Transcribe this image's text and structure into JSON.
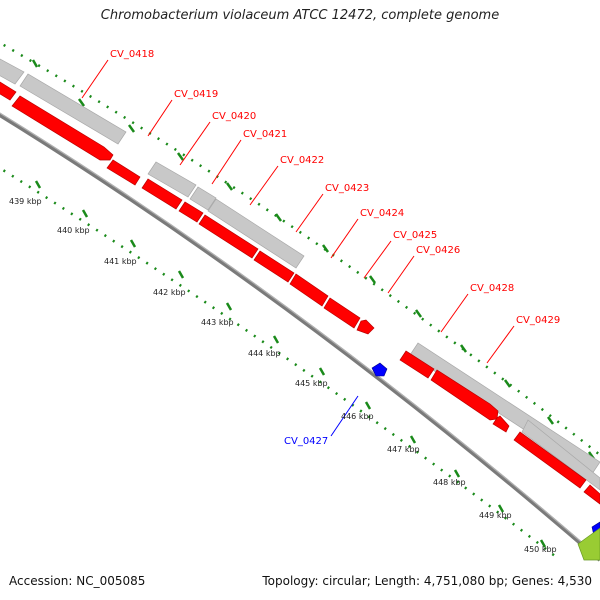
{
  "title": "Chromobacterium violaceum ATCC 12472, complete genome",
  "footer": {
    "accession": "Accession: NC_005085",
    "summary": "Topology: circular; Length: 4,751,080 bp; Genes: 4,530"
  },
  "colors": {
    "forward_cds": "#ff0000",
    "reverse_cds": "#0000ff",
    "gene_region": "#c8c8c8",
    "ticks": "#1a8a1a",
    "backbone": "#808080",
    "other_feature": "#99cc33"
  },
  "kbp_labels": [
    "439 kbp",
    "440 kbp",
    "441 kbp",
    "442 kbp",
    "443 kbp",
    "444 kbp",
    "445 kbp",
    "446 kbp",
    "447 kbp",
    "448 kbp",
    "449 kbp",
    "450 kbp"
  ],
  "gene_labels": [
    {
      "text": "CV_0418",
      "strand": "forward"
    },
    {
      "text": "CV_0419",
      "strand": "forward"
    },
    {
      "text": "CV_0420",
      "strand": "forward"
    },
    {
      "text": "CV_0421",
      "strand": "forward"
    },
    {
      "text": "CV_0422",
      "strand": "forward"
    },
    {
      "text": "CV_0423",
      "strand": "forward"
    },
    {
      "text": "CV_0424",
      "strand": "forward"
    },
    {
      "text": "CV_0425",
      "strand": "forward"
    },
    {
      "text": "CV_0426",
      "strand": "forward"
    },
    {
      "text": "CV_0428",
      "strand": "forward"
    },
    {
      "text": "CV_0429",
      "strand": "forward"
    },
    {
      "text": "CV_0427",
      "strand": "reverse"
    }
  ]
}
